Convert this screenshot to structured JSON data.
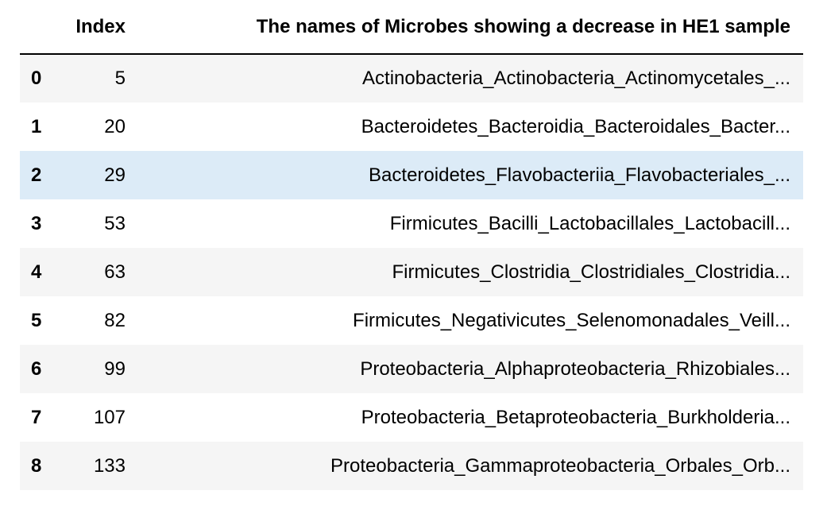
{
  "table": {
    "columns": {
      "index_label": "Index",
      "name_label": "The names of Microbes showing a decrease in HE1 sample"
    },
    "rows": [
      {
        "row": "0",
        "index": "5",
        "name": "Actinobacteria_Actinobacteria_Actinomycetales_..."
      },
      {
        "row": "1",
        "index": "20",
        "name": "Bacteroidetes_Bacteroidia_Bacteroidales_Bacter..."
      },
      {
        "row": "2",
        "index": "29",
        "name": "Bacteroidetes_Flavobacteriia_Flavobacteriales_..."
      },
      {
        "row": "3",
        "index": "53",
        "name": "Firmicutes_Bacilli_Lactobacillales_Lactobacill..."
      },
      {
        "row": "4",
        "index": "63",
        "name": "Firmicutes_Clostridia_Clostridiales_Clostridia..."
      },
      {
        "row": "5",
        "index": "82",
        "name": "Firmicutes_Negativicutes_Selenomonadales_Veill..."
      },
      {
        "row": "6",
        "index": "99",
        "name": "Proteobacteria_Alphaproteobacteria_Rhizobiales..."
      },
      {
        "row": "7",
        "index": "107",
        "name": "Proteobacteria_Betaproteobacteria_Burkholderia..."
      },
      {
        "row": "8",
        "index": "133",
        "name": "Proteobacteria_Gammaproteobacteria_Orbales_Orb..."
      }
    ],
    "highlighted_row": "2",
    "colors": {
      "striped_row": "#f5f5f5",
      "hover_row": "#dcebf7",
      "header_rule": "#000000"
    }
  }
}
